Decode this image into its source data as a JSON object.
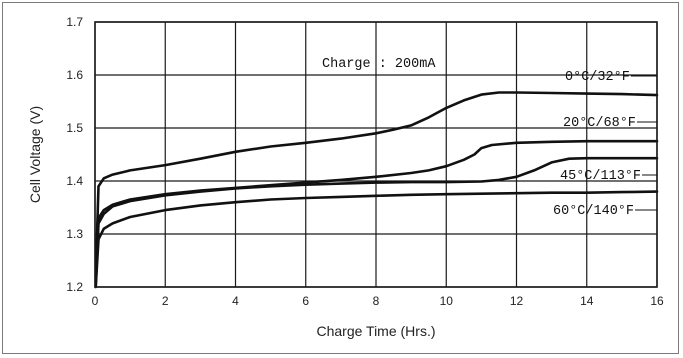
{
  "chart_data": {
    "type": "line",
    "title": "",
    "xlabel": "Charge Time (Hrs.)",
    "ylabel": "Cell Voltage (V)",
    "xlim": [
      0,
      16
    ],
    "ylim": [
      1.2,
      1.7
    ],
    "x_ticks": [
      "0",
      "2",
      "4",
      "6",
      "8",
      "10",
      "12",
      "14",
      "16"
    ],
    "y_ticks": [
      "1.2",
      "1.3",
      "1.4",
      "1.5",
      "1.6",
      "1.7"
    ],
    "grid": true,
    "annotation": "Charge : 200mA",
    "series": [
      {
        "name": "0°C/32°F",
        "x": [
          0.02,
          0.1,
          0.25,
          0.5,
          1,
          2,
          3,
          4,
          5,
          6,
          7,
          8,
          8.5,
          9,
          9.5,
          10,
          10.5,
          11,
          11.5,
          12,
          13,
          14,
          15,
          16
        ],
        "y": [
          1.22,
          1.39,
          1.405,
          1.412,
          1.42,
          1.43,
          1.442,
          1.455,
          1.465,
          1.472,
          1.48,
          1.49,
          1.497,
          1.505,
          1.52,
          1.538,
          1.552,
          1.563,
          1.567,
          1.567,
          1.566,
          1.565,
          1.564,
          1.562
        ]
      },
      {
        "name": "20°C/68°F",
        "x": [
          0.02,
          0.1,
          0.25,
          0.5,
          1,
          2,
          3,
          4,
          5,
          6,
          7,
          8,
          9,
          9.5,
          10,
          10.5,
          10.8,
          11,
          11.3,
          12,
          13,
          14,
          16
        ],
        "y": [
          1.21,
          1.33,
          1.345,
          1.355,
          1.365,
          1.375,
          1.382,
          1.387,
          1.392,
          1.397,
          1.402,
          1.408,
          1.415,
          1.42,
          1.428,
          1.44,
          1.45,
          1.462,
          1.468,
          1.472,
          1.474,
          1.475,
          1.475
        ]
      },
      {
        "name": "45°C/113°F",
        "x": [
          0.02,
          0.1,
          0.25,
          0.5,
          1,
          2,
          3,
          4,
          5,
          6,
          7,
          8,
          9,
          10,
          11,
          11.5,
          12,
          12.5,
          13,
          13.5,
          14,
          16
        ],
        "y": [
          1.2,
          1.32,
          1.338,
          1.352,
          1.362,
          1.373,
          1.38,
          1.386,
          1.39,
          1.393,
          1.395,
          1.397,
          1.398,
          1.398,
          1.399,
          1.402,
          1.408,
          1.42,
          1.435,
          1.442,
          1.443,
          1.443
        ]
      },
      {
        "name": "60°C/140°F",
        "x": [
          0.02,
          0.1,
          0.25,
          0.5,
          1,
          2,
          3,
          4,
          5,
          6,
          7,
          8,
          9,
          10,
          11,
          12,
          13,
          14,
          15,
          16
        ],
        "y": [
          1.2,
          1.29,
          1.31,
          1.32,
          1.332,
          1.345,
          1.354,
          1.36,
          1.365,
          1.368,
          1.37,
          1.372,
          1.374,
          1.375,
          1.376,
          1.377,
          1.378,
          1.378,
          1.379,
          1.38
        ]
      }
    ]
  }
}
